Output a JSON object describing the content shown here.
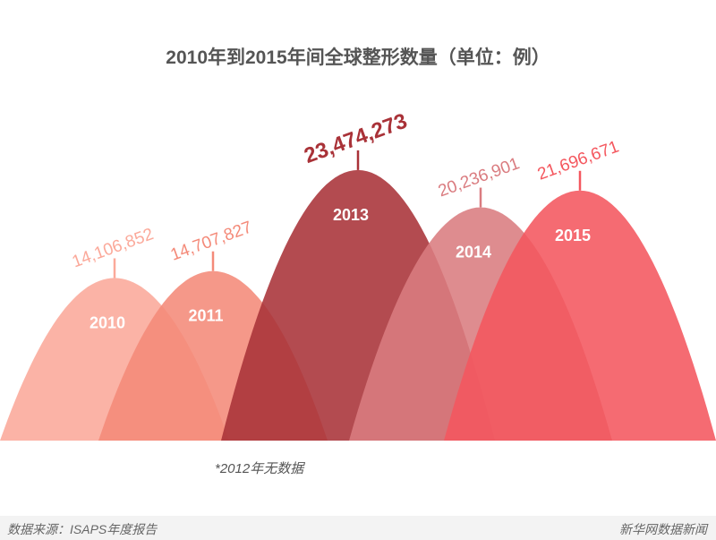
{
  "chart_data": {
    "type": "area",
    "title": "2010年到2015年间全球整形数量（单位：例）",
    "categories": [
      "2010",
      "2011",
      "2013",
      "2014",
      "2015"
    ],
    "values": [
      14106852,
      14707827,
      23474273,
      20236901,
      21696671
    ],
    "value_labels": [
      "14,106,852",
      "14,707,827",
      "23,474,273",
      "20,236,901",
      "21,696,671"
    ],
    "colors": [
      "#fba99a",
      "#f48a79",
      "#a93238",
      "#da7c80",
      "#f4575e"
    ],
    "note": "*2012年无数据"
  },
  "footer": {
    "source": "数据来源：ISAPS年度报告",
    "brand": "新华网数据新闻"
  }
}
